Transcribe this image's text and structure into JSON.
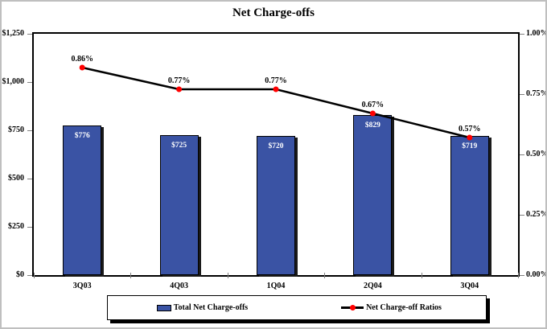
{
  "chart_data": {
    "type": "bar+line",
    "title": "Net Charge-offs",
    "categories": [
      "3Q03",
      "4Q03",
      "1Q04",
      "2Q04",
      "3Q04"
    ],
    "series": [
      {
        "name": "Total Net Charge-offs",
        "type": "bar",
        "axis": "left",
        "values": [
          776,
          725,
          720,
          829,
          719
        ],
        "labels": [
          "$776",
          "$725",
          "$720",
          "$829",
          "$719"
        ],
        "color": "#3A53A4"
      },
      {
        "name": "Net Charge-off Ratios",
        "type": "line",
        "axis": "right",
        "values": [
          0.86,
          0.77,
          0.77,
          0.67,
          0.57
        ],
        "labels": [
          "0.86%",
          "0.77%",
          "0.77%",
          "0.67%",
          "0.57%"
        ],
        "color": "#000000",
        "marker_color": "#FF0000"
      }
    ],
    "left_axis": {
      "min": 0,
      "max": 1250,
      "tick_values": [
        0,
        250,
        500,
        750,
        1000,
        1250
      ],
      "tick_labels": [
        "$0",
        "$250",
        "$500",
        "$750",
        "$1,000",
        "$1,250"
      ]
    },
    "right_axis": {
      "min": 0,
      "max": 1.0,
      "tick_values": [
        0,
        0.25,
        0.5,
        0.75,
        1.0
      ],
      "tick_labels": [
        "0.00%",
        "0.25%",
        "0.50%",
        "0.75%",
        "1.00%"
      ]
    },
    "legend_position": "bottom",
    "grid": false,
    "frame_color": "#000000",
    "outer_border_color": "#BFBFBF"
  }
}
